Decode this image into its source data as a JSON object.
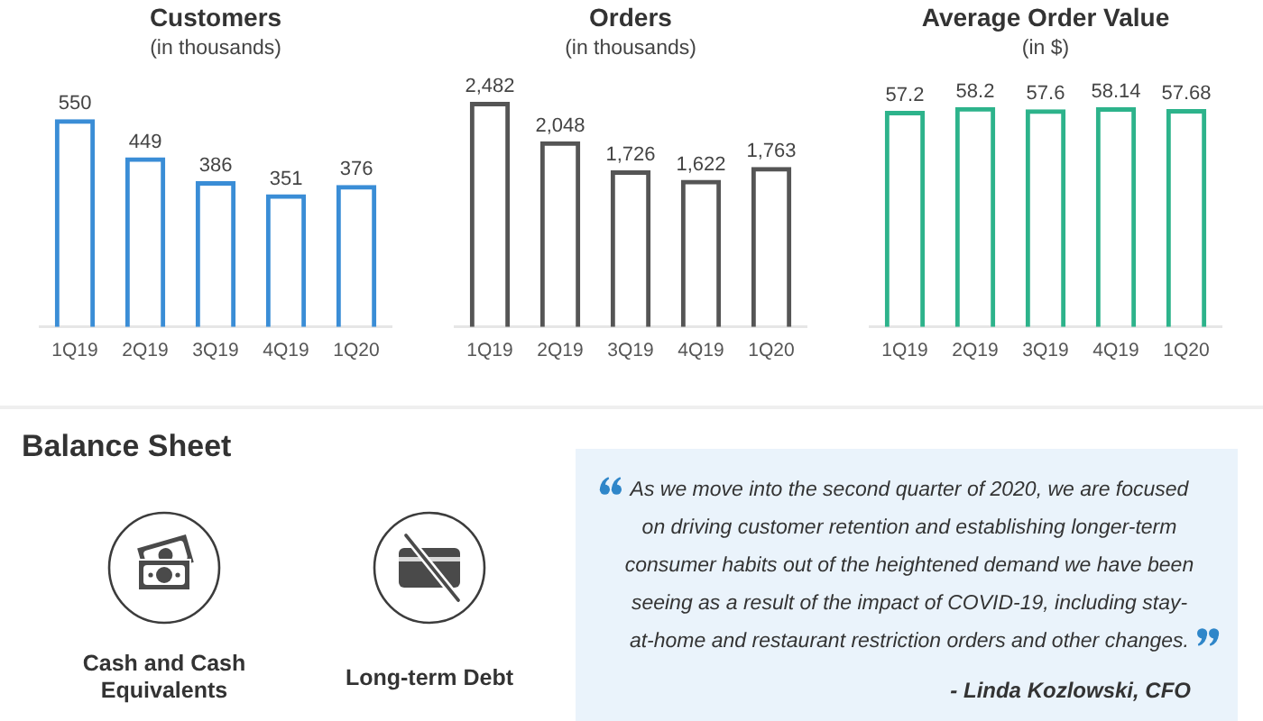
{
  "chart_data": [
    {
      "type": "bar",
      "title": "Customers",
      "subtitle": "(in thousands)",
      "categories": [
        "1Q19",
        "2Q19",
        "3Q19",
        "4Q19",
        "1Q20"
      ],
      "values": [
        550,
        449,
        386,
        351,
        376
      ],
      "color": "#3a8dd6",
      "data_labels": true,
      "grid": false,
      "tick_labels": "x"
    },
    {
      "type": "bar",
      "title": "Orders",
      "subtitle": "(in thousands)",
      "categories": [
        "1Q19",
        "2Q19",
        "3Q19",
        "4Q19",
        "1Q20"
      ],
      "values": [
        2482,
        2048,
        1726,
        1622,
        1763
      ],
      "value_labels": [
        "2,482",
        "2,048",
        "1,726",
        "1,622",
        "1,763"
      ],
      "color": "#555555",
      "grid": false,
      "tick_labels": "x"
    },
    {
      "type": "bar",
      "title": "Average Order Value",
      "subtitle": "(in $)",
      "categories": [
        "1Q19",
        "2Q19",
        "3Q19",
        "4Q19",
        "1Q20"
      ],
      "values": [
        57.2,
        58.2,
        57.6,
        58.14,
        57.68
      ],
      "color": "#2db38b",
      "data_labels": true,
      "grid": false,
      "tick_labels": "x"
    },
    {
      "type": "other",
      "title": "Balance Sheet",
      "annotations": [
        "Cash and Cash Equivalents",
        "Long-term Debt"
      ]
    },
    {
      "type": "other",
      "annotations": [
        "As we move into the second quarter of 2020, we are focused on driving customer retention and establishing longer-term consumer habits out of the heightened demand we have been seeing as a result of the impact of COVID-19, including stay-at-home and restaurant restriction orders and other changes.",
        "- Linda Kozlowski, CFO"
      ]
    }
  ]
}
